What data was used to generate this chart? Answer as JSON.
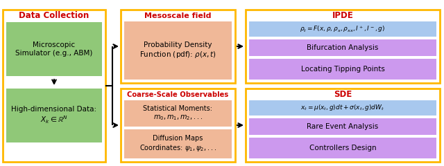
{
  "fig_width": 6.4,
  "fig_height": 2.4,
  "dpi": 100,
  "bg_color": "#ffffff",
  "gold": "#FFB800",
  "black": "#000000",
  "red": "#cc0000",
  "green_bg": "#90c878",
  "salmon_bg": "#f0b898",
  "blue_bg": "#a8c8ee",
  "purple_bg": "#cc99ee",
  "col1": {
    "title": "Data Collection",
    "box1_text": "Microscopic\nSimulator (e.g., ABM)",
    "box2_text": "High-dimensional Data:\n$X_k \\in \\mathbb{R}^N$"
  },
  "col2_top": {
    "title": "Mesoscale field",
    "box_text": "Probability Density\nFunction (pdf): $\\rho(x,t)$"
  },
  "col2_bot": {
    "title": "Coarse-Scale Observables",
    "box1_text": "Statistical Moments:\n$m_0, m_1, m_2, ...$",
    "box2_text": "Diffusion Maps\nCoordinates: $\\psi_1, \\psi_2, ...$"
  },
  "col3_top": {
    "title": "IPDE",
    "eq_text": "$\\rho_t = F(x,\\rho,\\rho_x,\\rho_{xx},I^+,I^-,g)$",
    "label1_text": "Bifurcation Analysis",
    "label2_text": "Locating Tipping Points"
  },
  "col3_bot": {
    "title": "SDE",
    "eq_text": "$x_t = \\mu(x_t,g)dt + \\sigma(x_t,g)dW_t$",
    "label1_text": "Rare Event Analysis",
    "label2_text": "Controllers Design"
  }
}
